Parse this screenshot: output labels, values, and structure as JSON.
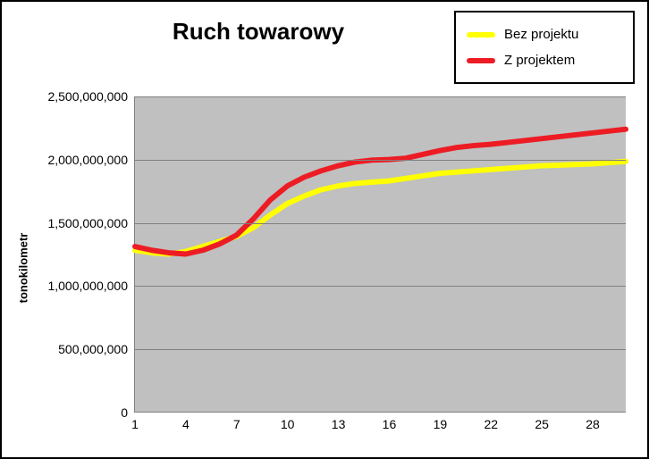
{
  "chart": {
    "type": "line",
    "title": "Ruch towarowy",
    "title_fontsize": 26,
    "y_axis_label": "tonokilometr",
    "label_fontsize": 13,
    "background_color": "#ffffff",
    "plot_background_color": "#c0c0c0",
    "grid_color": "#808080",
    "frame_border_color": "#000000",
    "ylim": [
      0,
      2500000000
    ],
    "xlim": [
      1,
      30
    ],
    "y_ticks": [
      0,
      500000000,
      1000000000,
      1500000000,
      2000000000,
      2500000000
    ],
    "y_tick_labels": [
      "0",
      "500,000,000",
      "1,000,000,000",
      "1,500,000,000",
      "2,000,000,000",
      "2,500,000,000"
    ],
    "x_ticks": [
      1,
      4,
      7,
      10,
      13,
      16,
      19,
      22,
      25,
      28
    ],
    "x_tick_labels": [
      "1",
      "4",
      "7",
      "10",
      "13",
      "16",
      "19",
      "22",
      "25",
      "28"
    ],
    "x_values": [
      1,
      2,
      3,
      4,
      5,
      6,
      7,
      8,
      9,
      10,
      11,
      12,
      13,
      14,
      15,
      16,
      17,
      18,
      19,
      20,
      21,
      22,
      23,
      24,
      25,
      26,
      27,
      28,
      29,
      30
    ],
    "legend": {
      "border_color": "#000000",
      "items": [
        {
          "label": "Bez projektu",
          "color": "#ffff00"
        },
        {
          "label": "Z projektem",
          "color": "#ed1c24"
        }
      ]
    },
    "series": [
      {
        "name": "Bez projektu",
        "color": "#ffff00",
        "line_width": 6,
        "values": [
          1280000000,
          1260000000,
          1250000000,
          1270000000,
          1310000000,
          1350000000,
          1390000000,
          1460000000,
          1560000000,
          1650000000,
          1710000000,
          1760000000,
          1790000000,
          1810000000,
          1820000000,
          1830000000,
          1850000000,
          1870000000,
          1890000000,
          1900000000,
          1910000000,
          1920000000,
          1930000000,
          1940000000,
          1950000000,
          1955000000,
          1960000000,
          1965000000,
          1975000000,
          1985000000
        ]
      },
      {
        "name": "Z projektem",
        "color": "#ed1c24",
        "line_width": 6,
        "values": [
          1310000000,
          1280000000,
          1260000000,
          1250000000,
          1280000000,
          1330000000,
          1400000000,
          1530000000,
          1680000000,
          1790000000,
          1860000000,
          1910000000,
          1950000000,
          1980000000,
          1995000000,
          2000000000,
          2010000000,
          2040000000,
          2070000000,
          2095000000,
          2110000000,
          2120000000,
          2135000000,
          2150000000,
          2165000000,
          2180000000,
          2195000000,
          2210000000,
          2225000000,
          2240000000
        ]
      }
    ]
  }
}
